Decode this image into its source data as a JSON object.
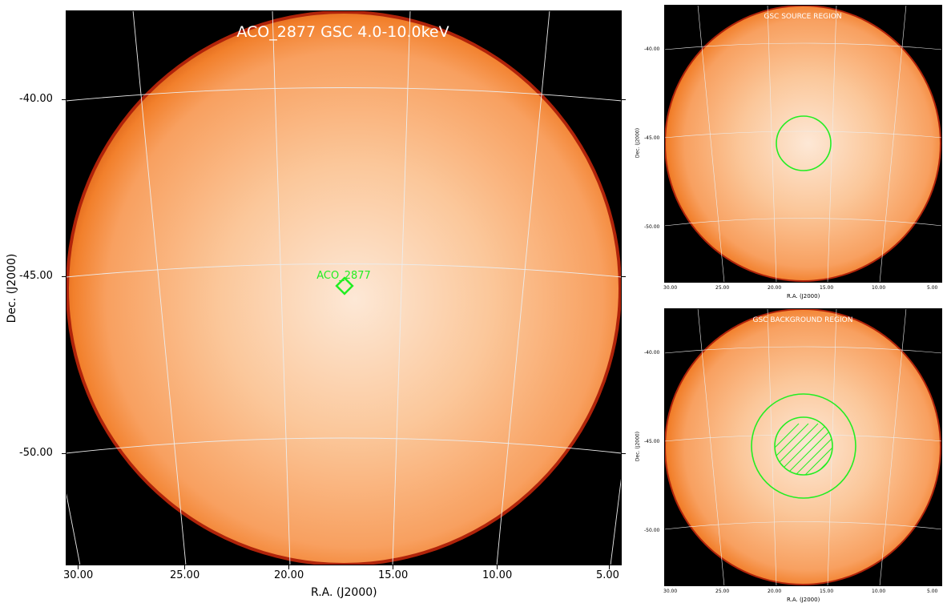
{
  "main": {
    "title": "ACO_2877 GSC 4.0-10.0keV",
    "source_label": "ACO_2877",
    "xlabel": "R.A. (J2000)",
    "ylabel": "Dec. (J2000)",
    "x_ticks": [
      "30.00",
      "25.00",
      "20.00",
      "15.00",
      "10.00",
      "5.00"
    ],
    "y_ticks": [
      "-40.00",
      "-45.00",
      "-50.00"
    ]
  },
  "source_panel": {
    "title": "GSC SOURCE REGION",
    "xlabel": "R.A. (J2000)",
    "ylabel": "Dec. (J2000)",
    "x_ticks": [
      "30.00",
      "25.00",
      "20.00",
      "15.00",
      "10.00",
      "5.00"
    ],
    "y_ticks": [
      "-40.00",
      "-45.00",
      "-50.00"
    ]
  },
  "background_panel": {
    "title": "GSC BACKGROUND REGION",
    "xlabel": "R.A. (J2000)",
    "ylabel": "Dec. (J2000)",
    "x_ticks": [
      "30.00",
      "25.00",
      "20.00",
      "15.00",
      "10.00",
      "5.00"
    ],
    "y_ticks": [
      "-40.00",
      "-45.00",
      "-50.00"
    ]
  },
  "colors": {
    "disk_center": "#fee6cf",
    "disk_mid": "#fbb27a",
    "disk_edge": "#f07b24",
    "rim": "#a31a04",
    "region": "#22ee22",
    "grid": "#e8e8e8"
  }
}
